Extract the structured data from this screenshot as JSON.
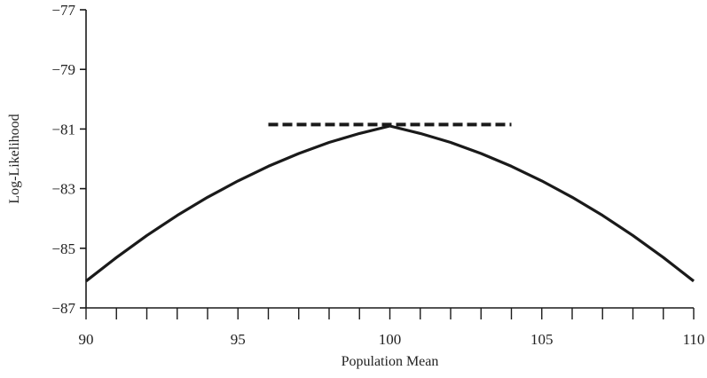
{
  "chart_data": {
    "type": "line",
    "title": "",
    "xlabel": "Population Mean",
    "ylabel": "Log-Likelihood",
    "xlim": [
      90,
      110
    ],
    "ylim": [
      -87,
      -77
    ],
    "x_ticks": [
      "90",
      "95",
      "100",
      "105",
      "110"
    ],
    "x_minor_step": 1,
    "y_ticks": [
      "−77",
      "−79",
      "−81",
      "−83",
      "−85",
      "−87"
    ],
    "grid": false,
    "legend": "none",
    "series": [
      {
        "style": "solid",
        "color": "#1a1a1a",
        "x": [
          90,
          91,
          92,
          93,
          94,
          95,
          96,
          97,
          98,
          99,
          100,
          101,
          102,
          103,
          104,
          105,
          106,
          107,
          108,
          109,
          110
        ],
        "y": [
          -86.1,
          -85.31,
          -84.57,
          -83.9,
          -83.29,
          -82.74,
          -82.25,
          -81.82,
          -81.45,
          -81.15,
          -80.9,
          -81.15,
          -81.45,
          -81.82,
          -82.25,
          -82.74,
          -83.29,
          -83.9,
          -84.57,
          -85.31,
          -86.1
        ]
      },
      {
        "style": "dashed",
        "color": "#1a1a1a",
        "x": [
          96,
          104
        ],
        "y": [
          -80.85,
          -80.85
        ]
      }
    ]
  }
}
